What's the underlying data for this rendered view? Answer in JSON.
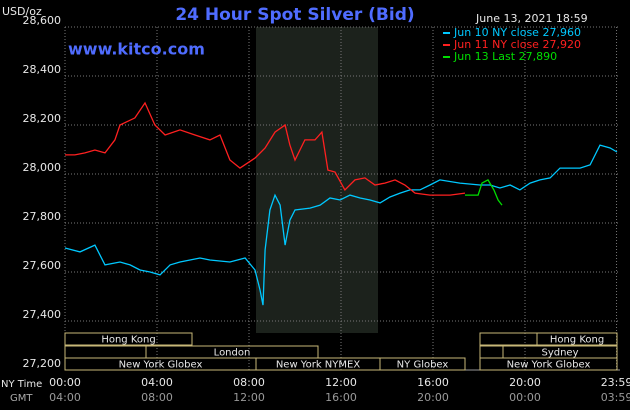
{
  "chart_data": {
    "type": "line",
    "title": "24 Hour Spot Silver (Bid)",
    "subtitle": "www.kitco.com",
    "timestamp": "June 13, 2021 18:59",
    "y_label": "USD/oz",
    "x_label": "NY Time",
    "x2_label": "GMT",
    "grid": true,
    "legend": "top-right",
    "ylim": [
      27200,
      28600
    ],
    "yticks": [
      {
        "value": 27200,
        "label": "27,200"
      },
      {
        "value": 27400,
        "label": "27,400"
      },
      {
        "value": 27600,
        "label": "27,600"
      },
      {
        "value": 27800,
        "label": "27,800"
      },
      {
        "value": 28000,
        "label": "28,000"
      },
      {
        "value": 28200,
        "label": "28,200"
      },
      {
        "value": 28400,
        "label": "28,400"
      },
      {
        "value": 28600,
        "label": "28,600"
      }
    ],
    "xlim": [
      0,
      24
    ],
    "xticks": [
      {
        "value": 0,
        "label": "00:00"
      },
      {
        "value": 4,
        "label": "04:00"
      },
      {
        "value": 8,
        "label": "08:00"
      },
      {
        "value": 12,
        "label": "12:00"
      },
      {
        "value": 16,
        "label": "16:00"
      },
      {
        "value": 20,
        "label": "20:00"
      },
      {
        "value": 23.98,
        "label": "23:59"
      }
    ],
    "x2ticks": [
      {
        "value": 0,
        "label": "04:00"
      },
      {
        "value": 4,
        "label": "08:00"
      },
      {
        "value": 8,
        "label": "12:00"
      },
      {
        "value": 12,
        "label": "16:00"
      },
      {
        "value": 16,
        "label": "20:00"
      },
      {
        "value": 20,
        "label": "00:00"
      },
      {
        "value": 23.98,
        "label": "03:59"
      }
    ],
    "sessions": [
      "Hong Kong",
      "London",
      "New York Globex",
      "New York NYMEX",
      "NY Globex",
      "Hong Kong",
      "Sydney",
      "New York Globex"
    ],
    "series": [
      {
        "name": "Jun 10 NY close 27,960",
        "color": "#00c8ff",
        "x": [
          0,
          0.65,
          1.3,
          1.74,
          2.39,
          2.83,
          3.26,
          3.7,
          4.13,
          4.57,
          5,
          5.87,
          6.3,
          7.17,
          7.83,
          8.26,
          8.48,
          8.61,
          8.7,
          8.91,
          9.13,
          9.35,
          9.57,
          9.78,
          10,
          10.65,
          11.09,
          11.52,
          11.96,
          12.39,
          12.83,
          13.26,
          13.7,
          14.13,
          14.57,
          15,
          15.43,
          15.87,
          16.3,
          17.17,
          18.04,
          18.48,
          18.91,
          19.35,
          19.78,
          20.22,
          20.65,
          21.09,
          21.52,
          21.96,
          22.39,
          22.83,
          23.26,
          23.7,
          24
        ],
        "values": [
          27698,
          27682,
          27710,
          27629,
          27641,
          27629,
          27608,
          27600,
          27588,
          27629,
          27641,
          27657,
          27649,
          27641,
          27657,
          27608,
          27527,
          27465,
          27690,
          27853,
          27914,
          27873,
          27710,
          27812,
          27853,
          27861,
          27873,
          27902,
          27894,
          27914,
          27902,
          27894,
          27882,
          27906,
          27922,
          27935,
          27935,
          27955,
          27976,
          27963,
          27955,
          27955,
          27943,
          27955,
          27935,
          27963,
          27976,
          27984,
          28024,
          28024,
          28024,
          28037,
          28118,
          28106,
          28090
        ]
      },
      {
        "name": "Jun 11 NY close 27,920",
        "color": "#ff2020",
        "x": [
          0,
          0.43,
          0.87,
          1.3,
          1.74,
          2.17,
          2.39,
          3.04,
          3.48,
          3.91,
          4.35,
          5,
          5.65,
          6.3,
          6.74,
          7.17,
          7.61,
          8.26,
          8.7,
          9.13,
          9.57,
          9.78,
          10,
          10.43,
          10.87,
          11.17,
          11.43,
          11.74,
          12.17,
          12.61,
          13.04,
          13.48,
          13.91,
          14.35,
          14.78,
          15.22,
          15.87,
          16.74,
          17.39
        ],
        "values": [
          28078,
          28078,
          28086,
          28098,
          28086,
          28139,
          28200,
          28229,
          28290,
          28200,
          28159,
          28180,
          28159,
          28139,
          28159,
          28057,
          28024,
          28065,
          28106,
          28171,
          28200,
          28118,
          28057,
          28139,
          28139,
          28171,
          28016,
          28008,
          27935,
          27976,
          27984,
          27955,
          27963,
          27976,
          27955,
          27922,
          27914,
          27914,
          27922
        ]
      },
      {
        "name": "Jun 13 Last 27,890",
        "color": "#00dd00",
        "x": [
          17.39,
          17.96,
          18.13,
          18.39,
          18.65,
          18.83,
          19
        ],
        "values": [
          27914,
          27914,
          27963,
          27976,
          27935,
          27894,
          27873
        ]
      }
    ]
  }
}
